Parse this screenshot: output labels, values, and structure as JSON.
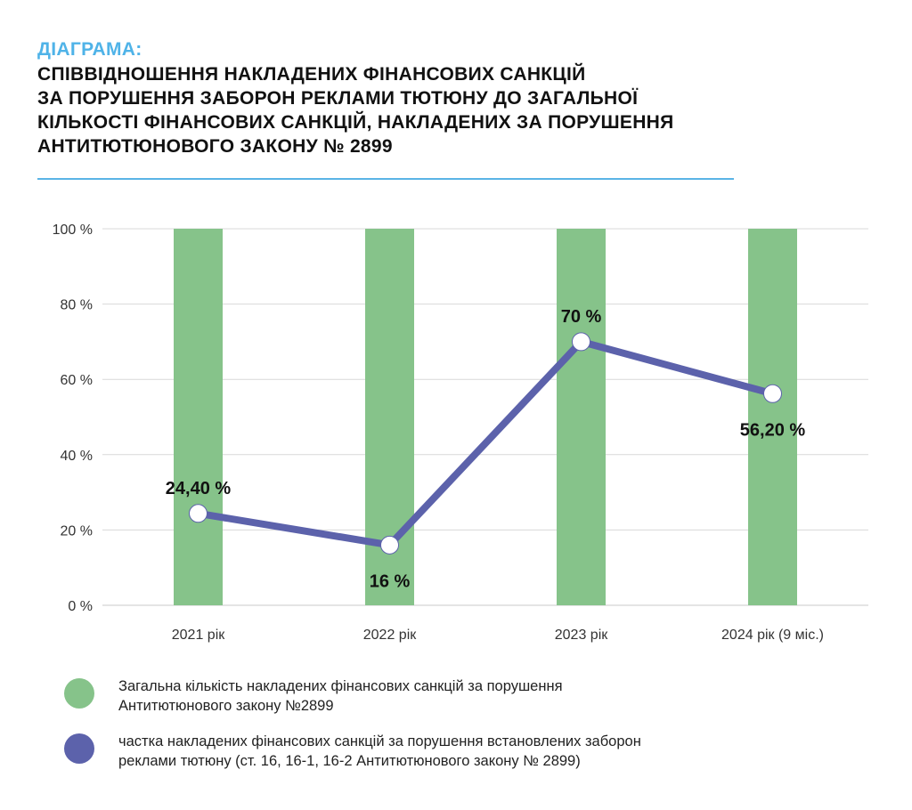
{
  "header": {
    "kicker": "ДІАГРАМА:",
    "title_lines": [
      "СПІВВІДНОШЕННЯ НАКЛАДЕНИХ ФІНАНСОВИХ САНКЦІЙ",
      "ЗА ПОРУШЕННЯ ЗАБОРОН РЕКЛАМИ ТЮТЮНУ ДО ЗАГАЛЬНОЇ",
      "КІЛЬКОСТІ ФІНАНСОВИХ САНКЦІЙ, НАКЛАДЕНИХ ЗА ПОРУШЕННЯ",
      "АНТИТЮТЮНОВОГО ЗАКОНУ № 2899"
    ]
  },
  "colors": {
    "accent": "#4fb3e8",
    "bars": "#86c38a",
    "line": "#5c62ab",
    "grid": "#d9d9d9",
    "marker": "#ffffff"
  },
  "chart_data": {
    "type": "bar",
    "categories": [
      "2021 рік",
      "2022 рік",
      "2023 рік",
      "2024 рік (9 міс.)"
    ],
    "ylim": [
      0,
      100
    ],
    "yticks": [
      0,
      20,
      40,
      60,
      80,
      100
    ],
    "ytick_labels": [
      "0 %",
      "20 %",
      "40 %",
      "60 %",
      "80 %",
      "100 %"
    ],
    "grid": true,
    "legend_position": "bottom",
    "series": [
      {
        "name": "Загальна кількість накладених фінансових санкцій за порушення Антитютюнового закону №2899",
        "type": "bar",
        "values": [
          100,
          100,
          100,
          100
        ]
      },
      {
        "name": "частка накладених фінансових санкцій за порушення встановлених заборон реклами тютюну (ст. 16, 16-1, 16-2 Антитютюнового закону № 2899)",
        "type": "line",
        "values": [
          24.4,
          16,
          70,
          56.2
        ],
        "data_labels": [
          "24,40 %",
          "16 %",
          "70 %",
          "56,20 %"
        ]
      }
    ]
  },
  "legend": {
    "items": [
      {
        "lines": [
          "Загальна кількість накладених фінансових санкцій за порушення",
          "Антитютюнового закону №2899"
        ],
        "color": "#86c38a"
      },
      {
        "lines": [
          "частка накладених фінансових санкцій за порушення встановлених заборон",
          "реклами тютюну (ст. 16, 16-1, 16-2 Антитютюнового закону № 2899)"
        ],
        "color": "#5c62ab"
      }
    ]
  }
}
